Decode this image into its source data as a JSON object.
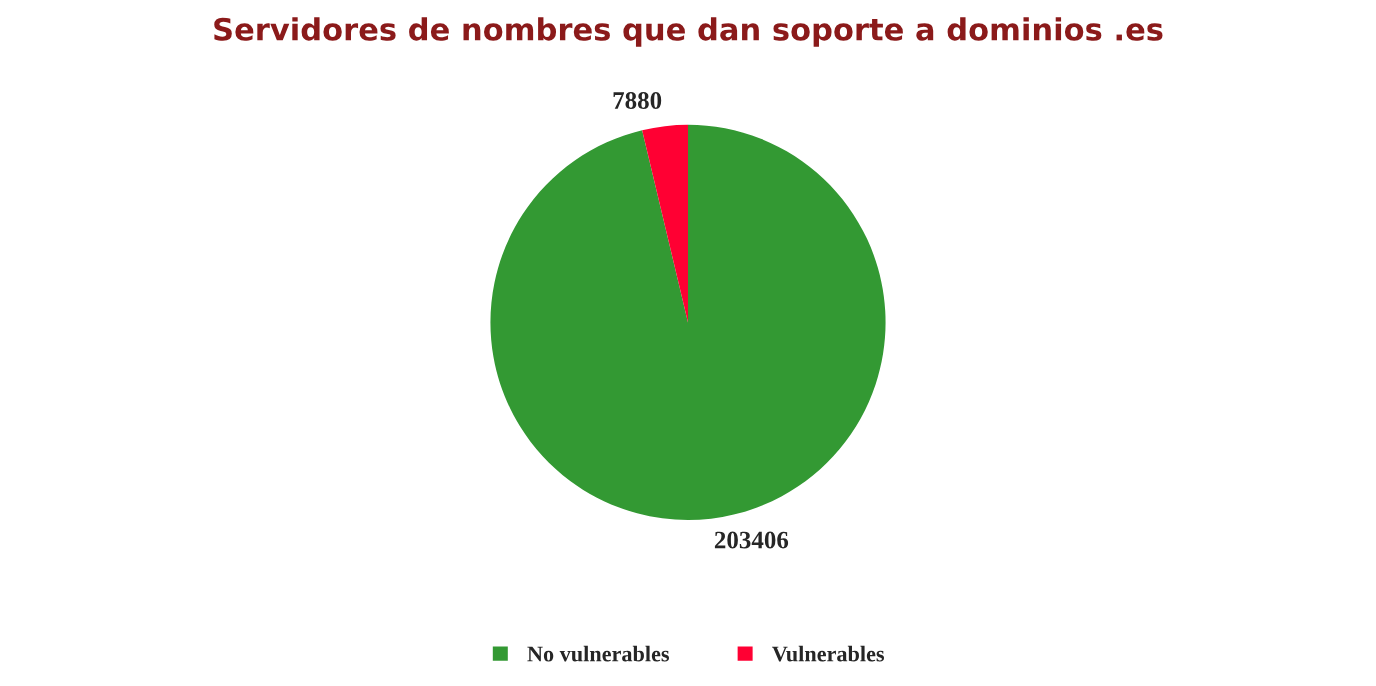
{
  "chart_data": {
    "type": "pie",
    "title": "Servidores de nombres que dan soporte a dominios .es",
    "categories": [
      "No vulnerables",
      "Vulnerables"
    ],
    "values": [
      203406,
      7880
    ],
    "colors": [
      "#339933",
      "#ff0033"
    ],
    "data_labels": true,
    "legend": "bottom"
  }
}
